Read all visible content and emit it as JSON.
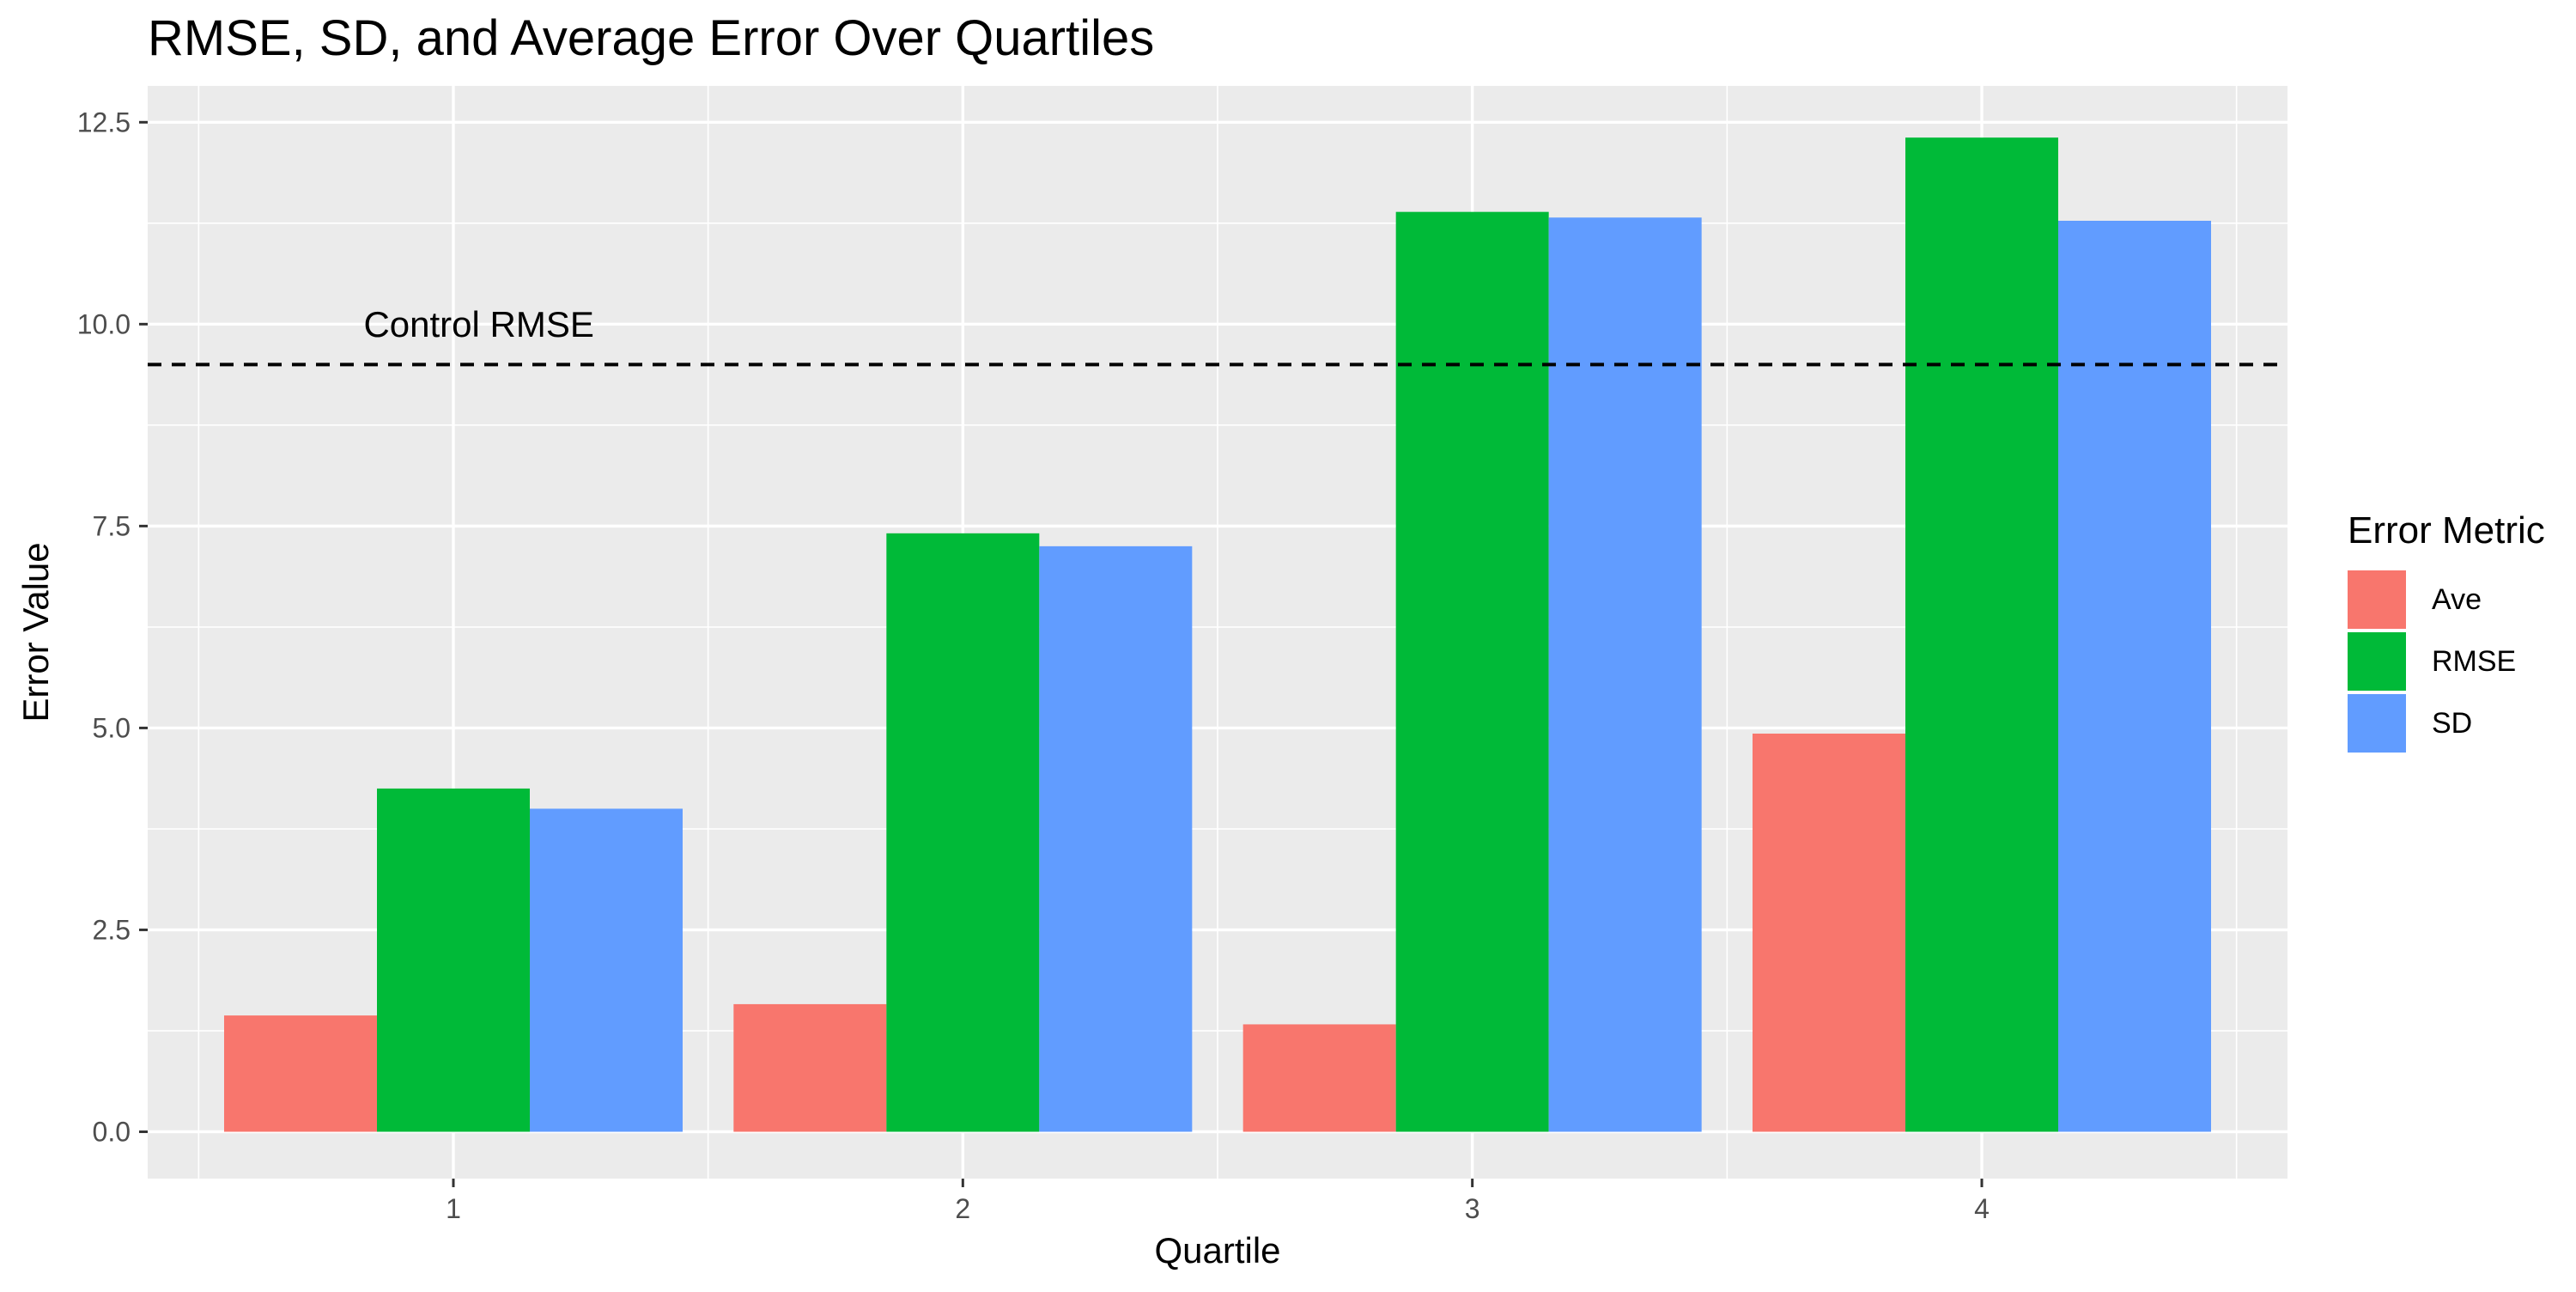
{
  "chart_data": {
    "type": "bar",
    "title": "RMSE, SD, and Average Error Over Quartiles",
    "xlabel": "Quartile",
    "ylabel": "Error Value",
    "categories": [
      "1",
      "2",
      "3",
      "4"
    ],
    "series": [
      {
        "name": "Ave",
        "color": "#F8766D",
        "values": [
          1.44,
          1.58,
          1.33,
          4.93
        ]
      },
      {
        "name": "RMSE",
        "color": "#00BA38",
        "values": [
          4.25,
          7.41,
          11.39,
          12.31
        ]
      },
      {
        "name": "SD",
        "color": "#619CFF",
        "values": [
          4.0,
          7.25,
          11.32,
          11.28
        ]
      }
    ],
    "ylim": [
      -0.58,
      12.95
    ],
    "yticks": [
      0.0,
      2.5,
      5.0,
      7.5,
      10.0,
      12.5
    ],
    "ytick_labels": [
      "0.0",
      "2.5",
      "5.0",
      "7.5",
      "10.0",
      "12.5"
    ],
    "grid": true,
    "legend": {
      "title": "Error Metric",
      "position": "right"
    },
    "reference_line": {
      "value": 9.5,
      "style": "dashed",
      "color": "#000000",
      "label": "Control RMSE",
      "label_x": 1.05,
      "label_y": 10.0
    }
  }
}
